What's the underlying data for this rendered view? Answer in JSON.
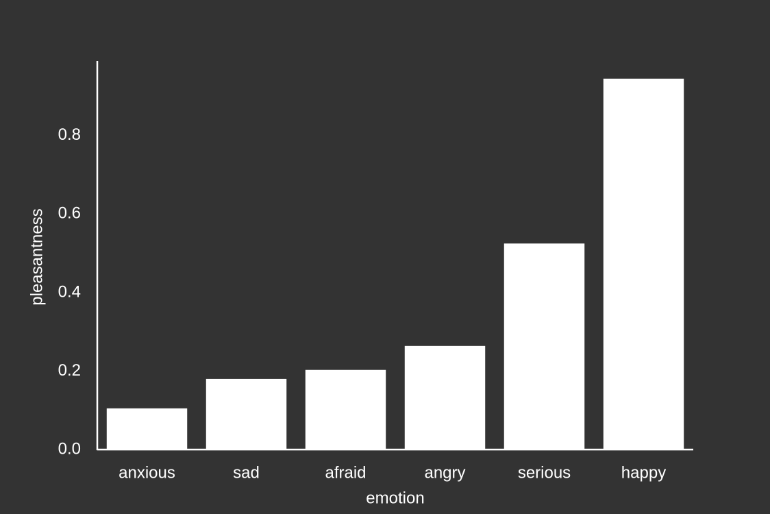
{
  "chart_data": {
    "type": "bar",
    "xlabel": "emotion",
    "ylabel": "pleasantness",
    "categories": [
      "anxious",
      "sad",
      "afraid",
      "angry",
      "serious",
      "happy"
    ],
    "values": [
      0.105,
      0.18,
      0.203,
      0.264,
      0.525,
      0.945
    ],
    "color": "#ffffff",
    "ylim": [
      0,
      0.99
    ],
    "yticks": [
      {
        "value": 0,
        "label": "0.0"
      },
      0.2,
      0.4,
      0.6,
      0.8
    ],
    "grid": false
  }
}
